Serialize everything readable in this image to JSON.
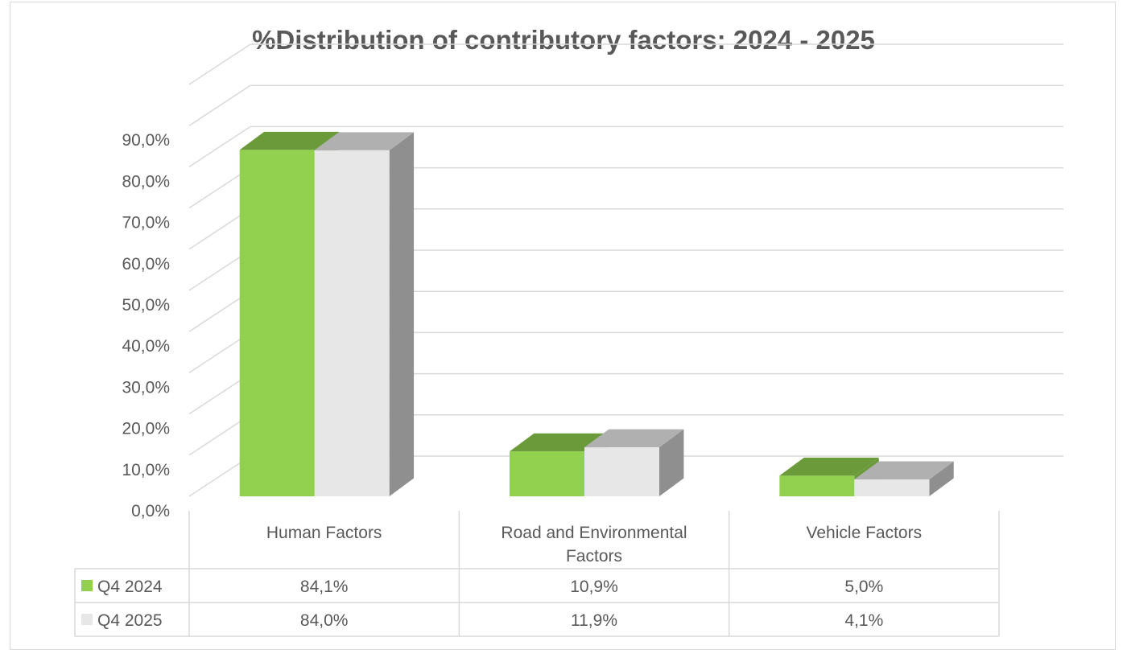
{
  "chart_data": {
    "type": "bar",
    "title": "%Distribution of contributory factors:  2024 - 2025",
    "categories": [
      "Human Factors",
      "Road and Environmental Factors",
      "Vehicle Factors"
    ],
    "category_lines": [
      [
        "Human Factors"
      ],
      [
        "Road and Environmental",
        "Factors"
      ],
      [
        "Vehicle Factors"
      ]
    ],
    "series": [
      {
        "name": "Q4 2024",
        "values": [
          84.1,
          10.9,
          5.0
        ],
        "labels": [
          "84,1%",
          "10,9%",
          "5,0%"
        ],
        "color": "#92d050",
        "top_color": "#6a9a3a"
      },
      {
        "name": "Q4 2025",
        "values": [
          84.0,
          11.9,
          4.1
        ],
        "labels": [
          "84,0%",
          "11,9%",
          "4,1%"
        ],
        "color": "#e7e7e7",
        "top_color": "#b0b0b0",
        "side_color": "#8f8f8f"
      }
    ],
    "ylim": [
      0,
      100
    ],
    "yticks": [
      0,
      10,
      20,
      30,
      40,
      50,
      60,
      70,
      80,
      90
    ],
    "ytick_labels": [
      "0,0%",
      "10,0%",
      "20,0%",
      "30,0%",
      "40,0%",
      "50,0%",
      "60,0%",
      "70,0%",
      "80,0%",
      "90,0%"
    ],
    "grid": true,
    "legend": "data-table",
    "style": "3d-clustered-column"
  }
}
